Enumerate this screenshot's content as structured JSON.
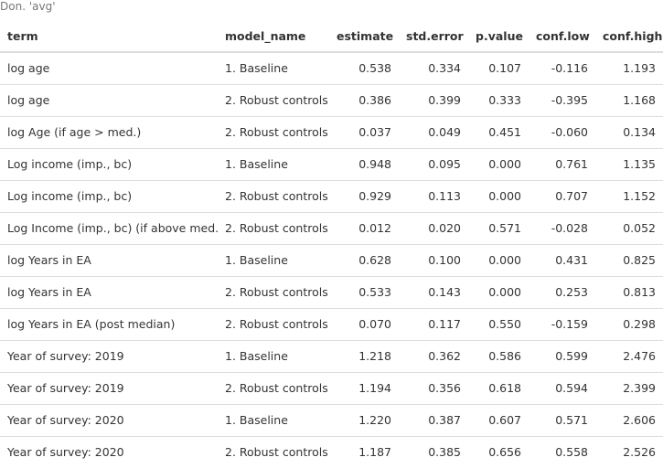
{
  "caption": "Don. 'avg'",
  "headers": [
    "term",
    "model_name",
    "estimate",
    "std.error",
    "p.value",
    "conf.low",
    "conf.high"
  ],
  "rows": [
    [
      "log age",
      "1. Baseline",
      "0.538",
      "0.334",
      "0.107",
      "-0.116",
      "1.193"
    ],
    [
      "log age",
      "2. Robust controls",
      "0.386",
      "0.399",
      "0.333",
      "-0.395",
      "1.168"
    ],
    [
      "log Age (if age > med.)",
      "2. Robust controls",
      "0.037",
      "0.049",
      "0.451",
      "-0.060",
      "0.134"
    ],
    [
      "Log income (imp., bc)",
      "1. Baseline",
      "0.948",
      "0.095",
      "0.000",
      "0.761",
      "1.135"
    ],
    [
      "Log income (imp., bc)",
      "2. Robust controls",
      "0.929",
      "0.113",
      "0.000",
      "0.707",
      "1.152"
    ],
    [
      "Log Income (imp., bc) (if above med.)",
      "2. Robust controls",
      "0.012",
      "0.020",
      "0.571",
      "-0.028",
      "0.052"
    ],
    [
      "log Years in EA",
      "1. Baseline",
      "0.628",
      "0.100",
      "0.000",
      "0.431",
      "0.825"
    ],
    [
      "log Years in EA",
      "2. Robust controls",
      "0.533",
      "0.143",
      "0.000",
      "0.253",
      "0.813"
    ],
    [
      "log Years in EA (post median)",
      "2. Robust controls",
      "0.070",
      "0.117",
      "0.550",
      "-0.159",
      "0.298"
    ],
    [
      "Year of survey: 2019",
      "1. Baseline",
      "1.218",
      "0.362",
      "0.586",
      "0.599",
      "2.476"
    ],
    [
      "Year of survey: 2019",
      "2. Robust controls",
      "1.194",
      "0.356",
      "0.618",
      "0.594",
      "2.399"
    ],
    [
      "Year of survey: 2020",
      "1. Baseline",
      "1.220",
      "0.387",
      "0.607",
      "0.571",
      "2.606"
    ],
    [
      "Year of survey: 2020",
      "2. Robust controls",
      "1.187",
      "0.385",
      "0.656",
      "0.558",
      "2.526"
    ]
  ]
}
